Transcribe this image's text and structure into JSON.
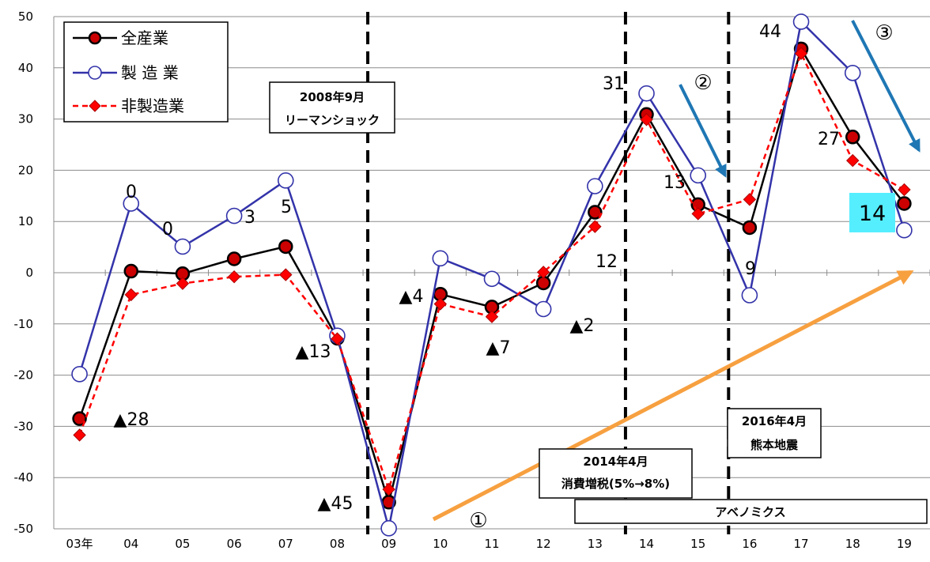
{
  "chart_data": {
    "type": "line",
    "categories": [
      "03年",
      "04",
      "05",
      "06",
      "07",
      "08",
      "09",
      "10",
      "11",
      "12",
      "13",
      "14",
      "15",
      "16",
      "17",
      "18",
      "19"
    ],
    "ylim": [
      -50,
      50
    ],
    "yticks": [
      50,
      40,
      30,
      20,
      10,
      0,
      -10,
      -20,
      -30,
      -40,
      -50
    ],
    "grid": true,
    "legend_position": "top-left",
    "series": [
      {
        "name": "全産業",
        "color": "#000000",
        "marker": "filled-circle",
        "marker_fill": "#cc0000",
        "line_style": "solid",
        "values": [
          -28.5,
          0.3,
          -0.2,
          2.7,
          5.1,
          -12.8,
          -44.8,
          -4.2,
          -6.7,
          -2.0,
          11.8,
          30.9,
          13.3,
          8.8,
          43.7,
          26.5,
          13.5
        ]
      },
      {
        "name": "製 造 業",
        "color": "#3333aa",
        "marker": "open-circle",
        "marker_fill": "#ffffff",
        "line_style": "solid",
        "values": [
          -19.8,
          13.5,
          5.1,
          11.1,
          18.0,
          -12.3,
          -49.9,
          2.8,
          -1.2,
          -7.1,
          16.9,
          35.0,
          19.0,
          -4.4,
          49.0,
          39.0,
          8.3
        ]
      },
      {
        "name": "非製造業",
        "color": "#ff0000",
        "marker": "diamond",
        "marker_fill": "#ff0000",
        "line_style": "dashed",
        "values": [
          -31.7,
          -4.3,
          -2.1,
          -0.8,
          -0.4,
          -12.9,
          -42.3,
          -6.1,
          -8.6,
          0.1,
          9.0,
          29.9,
          11.5,
          14.3,
          42.8,
          21.9,
          16.2
        ]
      }
    ],
    "data_labels": [
      {
        "text": "▲28"
      },
      {
        "text": "0"
      },
      {
        "text": "0"
      },
      {
        "text": "3"
      },
      {
        "text": "5"
      },
      {
        "text": "▲13"
      },
      {
        "text": "▲45"
      },
      {
        "text": "▲4"
      },
      {
        "text": "▲7"
      },
      {
        "text": "▲2"
      },
      {
        "text": "12"
      },
      {
        "text": "31"
      },
      {
        "text": "13"
      },
      {
        "text": "9"
      },
      {
        "text": "44"
      },
      {
        "text": "27"
      },
      {
        "text": "14"
      }
    ],
    "event_lines": [
      {
        "after_category": "08",
        "label": [
          "2008年9月",
          "リーマンショック"
        ]
      },
      {
        "after_category": "13",
        "label": [
          "2014年4月",
          "消費増税(5%→8%)"
        ]
      },
      {
        "after_category": "15",
        "label": [
          "2016年4月",
          "熊本地震"
        ]
      }
    ],
    "period_box": {
      "label": "アベノミクス"
    },
    "annotations": [
      {
        "text": "①",
        "arrow_color": "#f7a040",
        "direction": "up-right"
      },
      {
        "text": "②",
        "arrow_color": "#1f77b4",
        "direction": "down-right"
      },
      {
        "text": "③",
        "arrow_color": "#1f77b4",
        "direction": "down-right"
      }
    ],
    "highlight_label": {
      "text": "14",
      "background": "#55eeff"
    }
  }
}
